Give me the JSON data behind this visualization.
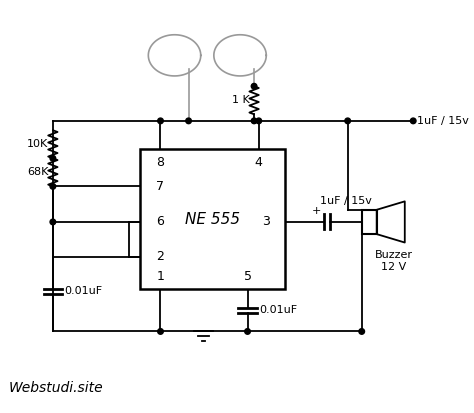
{
  "bg_color": "#ffffff",
  "line_color": "#000000",
  "gray_color": "#999999",
  "text_color": "#000000",
  "watermark": "Webstudi.site",
  "label_1k": "1 K",
  "label_10k": "10K",
  "label_68k": "68K",
  "label_cap1": "0.01uF",
  "label_cap2": "0.01uF",
  "label_cap3": "1uF / 15v",
  "label_cap4": "1uF / 15v",
  "label_buzzer": "Buzzer\n12 V",
  "label_ne555": "NE 555",
  "pin8": "8",
  "pin4": "4",
  "pin7": "7",
  "pin6": "6",
  "pin3": "3",
  "pin2": "2",
  "pin1": "1",
  "pin5": "5"
}
